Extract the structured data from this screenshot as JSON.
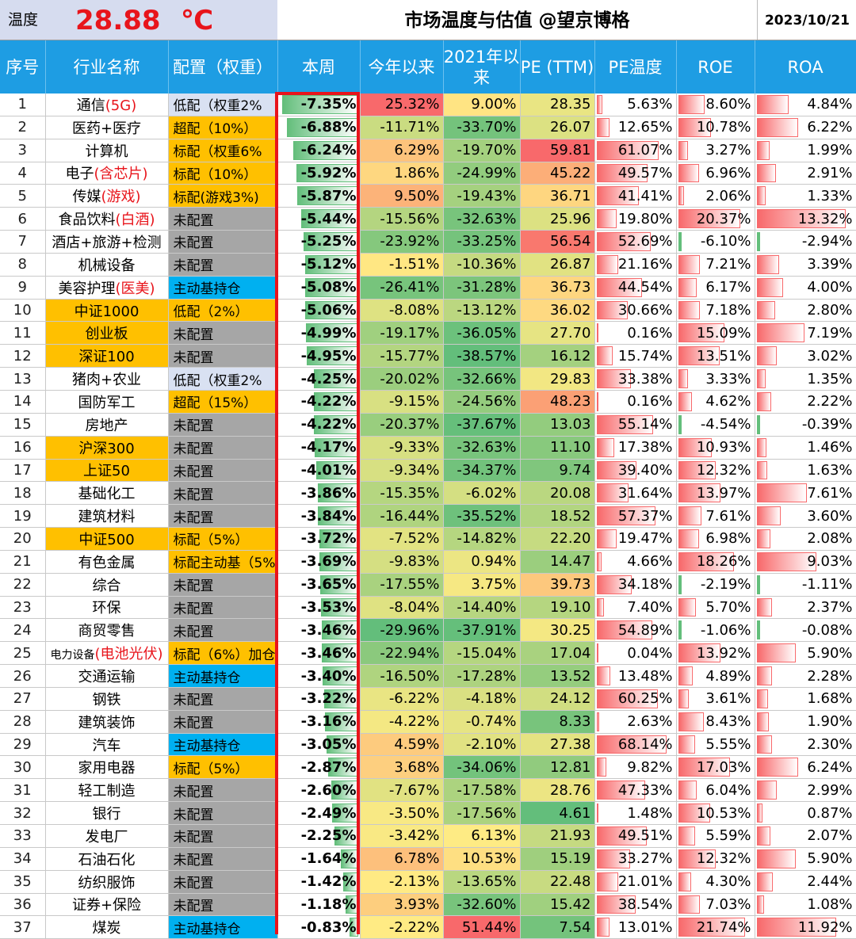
{
  "header": {
    "temp_label": "温度",
    "temp_value": "28.88",
    "temp_unit": "℃",
    "title": "市场温度与估值 @望京博格",
    "date": "2023/10/21"
  },
  "columns": [
    "序号",
    "行业名称",
    "配置（权重）",
    "本周",
    "今年以来",
    "2021年以来",
    "PE (TTM)",
    "PE温度",
    "ROE",
    "ROA"
  ],
  "colors": {
    "header_blue": "#1e9de3",
    "orange": "#ffc000",
    "gray": "#a6a6a6",
    "light_blue": "#d9e1f2",
    "cyan": "#00b0f0",
    "red_highlight": "#e8141b",
    "green": "#63be7b",
    "yellow": "#ffeb84",
    "red": "#f8696b"
  },
  "rows": [
    {
      "idx": "1",
      "name": "通信",
      "name_note": "(5G)",
      "alloc": "低配（权重2%",
      "alloc_style": "light",
      "week": "-7.35%",
      "ytd": "25.32%",
      "since2021": "9.00%",
      "pe": "28.35",
      "pe_temp": "5.63%",
      "roe": "8.60%",
      "roa": "4.84%"
    },
    {
      "idx": "2",
      "name": "医药+医疗",
      "name_note": "",
      "alloc": "超配（10%）",
      "alloc_style": "orange",
      "week": "-6.88%",
      "ytd": "-11.71%",
      "since2021": "-33.70%",
      "pe": "26.07",
      "pe_temp": "12.65%",
      "roe": "10.78%",
      "roa": "6.22%"
    },
    {
      "idx": "3",
      "name": "计算机",
      "name_note": "",
      "alloc": "标配（权重6%",
      "alloc_style": "orange",
      "week": "-6.24%",
      "ytd": "6.29%",
      "since2021": "-19.70%",
      "pe": "59.81",
      "pe_temp": "61.07%",
      "roe": "3.27%",
      "roa": "1.99%"
    },
    {
      "idx": "4",
      "name": "电子",
      "name_note": "(含芯片)",
      "alloc": "标配（10%）",
      "alloc_style": "orange",
      "week": "-5.92%",
      "ytd": "1.86%",
      "since2021": "-24.99%",
      "pe": "45.22",
      "pe_temp": "49.57%",
      "roe": "6.96%",
      "roa": "2.91%"
    },
    {
      "idx": "5",
      "name": "传媒",
      "name_note": "(游戏)",
      "alloc": "标配(游戏3%)",
      "alloc_style": "orange",
      "week": "-5.87%",
      "ytd": "9.50%",
      "since2021": "-19.43%",
      "pe": "36.71",
      "pe_temp": "41.41%",
      "roe": "2.06%",
      "roa": "1.33%"
    },
    {
      "idx": "6",
      "name": "食品饮料",
      "name_note": "(白酒)",
      "alloc": "未配置",
      "alloc_style": "gray",
      "week": "-5.44%",
      "ytd": "-15.56%",
      "since2021": "-32.63%",
      "pe": "25.96",
      "pe_temp": "19.80%",
      "roe": "20.37%",
      "roa": "13.32%"
    },
    {
      "idx": "7",
      "name": "酒店+旅游+检测",
      "name_note": "",
      "alloc": "未配置",
      "alloc_style": "gray",
      "week": "-5.25%",
      "ytd": "-23.92%",
      "since2021": "-33.25%",
      "pe": "56.54",
      "pe_temp": "52.69%",
      "roe": "-6.10%",
      "roa": "-2.94%"
    },
    {
      "idx": "8",
      "name": "机械设备",
      "name_note": "",
      "alloc": "未配置",
      "alloc_style": "gray",
      "week": "-5.12%",
      "ytd": "-1.51%",
      "since2021": "-10.36%",
      "pe": "26.87",
      "pe_temp": "21.16%",
      "roe": "7.21%",
      "roa": "3.39%"
    },
    {
      "idx": "9",
      "name": "美容护理",
      "name_note": "(医美)",
      "alloc": "主动基持仓",
      "alloc_style": "blue",
      "week": "-5.08%",
      "ytd": "-26.41%",
      "since2021": "-31.28%",
      "pe": "36.73",
      "pe_temp": "44.54%",
      "roe": "6.17%",
      "roa": "4.00%"
    },
    {
      "idx": "10",
      "name": "中证1000",
      "name_note": "",
      "alloc": "低配（2%）",
      "alloc_style": "orange",
      "week": "-5.06%",
      "ytd": "-8.08%",
      "since2021": "-13.12%",
      "pe": "36.02",
      "pe_temp": "30.66%",
      "roe": "7.18%",
      "roa": "2.80%"
    },
    {
      "idx": "11",
      "name": "创业板",
      "name_note": "",
      "alloc": "未配置",
      "alloc_style": "gray",
      "week": "-4.99%",
      "ytd": "-19.17%",
      "since2021": "-36.05%",
      "pe": "27.70",
      "pe_temp": "0.16%",
      "roe": "15.09%",
      "roa": "7.19%"
    },
    {
      "idx": "12",
      "name": "深证100",
      "name_note": "",
      "alloc": "未配置",
      "alloc_style": "gray",
      "week": "-4.95%",
      "ytd": "-15.77%",
      "since2021": "-38.57%",
      "pe": "16.12",
      "pe_temp": "15.74%",
      "roe": "13.51%",
      "roa": "3.02%"
    },
    {
      "idx": "13",
      "name": "猪肉+农业",
      "name_note": "",
      "alloc": "低配（权重2%",
      "alloc_style": "light",
      "week": "-4.25%",
      "ytd": "-20.02%",
      "since2021": "-32.66%",
      "pe": "29.83",
      "pe_temp": "33.38%",
      "roe": "3.33%",
      "roa": "1.35%"
    },
    {
      "idx": "14",
      "name": "国防军工",
      "name_note": "",
      "alloc": "超配（15%）",
      "alloc_style": "orange",
      "week": "-4.22%",
      "ytd": "-9.15%",
      "since2021": "-24.56%",
      "pe": "48.23",
      "pe_temp": "0.16%",
      "roe": "4.62%",
      "roa": "2.22%"
    },
    {
      "idx": "15",
      "name": "房地产",
      "name_note": "",
      "alloc": "未配置",
      "alloc_style": "gray",
      "week": "-4.22%",
      "ytd": "-20.37%",
      "since2021": "-37.67%",
      "pe": "13.03",
      "pe_temp": "55.14%",
      "roe": "-4.54%",
      "roa": "-0.39%"
    },
    {
      "idx": "16",
      "name": "沪深300",
      "name_note": "",
      "alloc": "未配置",
      "alloc_style": "gray",
      "week": "-4.17%",
      "ytd": "-9.33%",
      "since2021": "-32.63%",
      "pe": "11.10",
      "pe_temp": "17.38%",
      "roe": "10.93%",
      "roa": "1.46%"
    },
    {
      "idx": "17",
      "name": "上证50",
      "name_note": "",
      "alloc": "未配置",
      "alloc_style": "gray",
      "week": "-4.01%",
      "ytd": "-9.34%",
      "since2021": "-34.37%",
      "pe": "9.74",
      "pe_temp": "39.40%",
      "roe": "12.32%",
      "roa": "1.63%"
    },
    {
      "idx": "18",
      "name": "基础化工",
      "name_note": "",
      "alloc": "未配置",
      "alloc_style": "gray",
      "week": "-3.86%",
      "ytd": "-15.35%",
      "since2021": "-6.02%",
      "pe": "20.08",
      "pe_temp": "31.64%",
      "roe": "13.97%",
      "roa": "7.61%"
    },
    {
      "idx": "19",
      "name": "建筑材料",
      "name_note": "",
      "alloc": "未配置",
      "alloc_style": "gray",
      "week": "-3.84%",
      "ytd": "-16.44%",
      "since2021": "-35.52%",
      "pe": "18.52",
      "pe_temp": "57.37%",
      "roe": "7.61%",
      "roa": "3.60%"
    },
    {
      "idx": "20",
      "name": "中证500",
      "name_note": "",
      "alloc": "标配（5%）",
      "alloc_style": "orange",
      "week": "-3.72%",
      "ytd": "-7.52%",
      "since2021": "-14.82%",
      "pe": "22.20",
      "pe_temp": "19.47%",
      "roe": "6.98%",
      "roa": "2.08%"
    },
    {
      "idx": "21",
      "name": "有色金属",
      "name_note": "",
      "alloc": "标配主动基（5%",
      "alloc_style": "orange",
      "week": "-3.69%",
      "ytd": "-9.83%",
      "since2021": "0.94%",
      "pe": "14.47",
      "pe_temp": "4.66%",
      "roe": "18.26%",
      "roa": "9.03%"
    },
    {
      "idx": "22",
      "name": "综合",
      "name_note": "",
      "alloc": "未配置",
      "alloc_style": "gray",
      "week": "-3.65%",
      "ytd": "-17.55%",
      "since2021": "3.75%",
      "pe": "39.73",
      "pe_temp": "34.18%",
      "roe": "-2.19%",
      "roa": "-1.11%"
    },
    {
      "idx": "23",
      "name": "环保",
      "name_note": "",
      "alloc": "未配置",
      "alloc_style": "gray",
      "week": "-3.53%",
      "ytd": "-8.04%",
      "since2021": "-14.40%",
      "pe": "19.10",
      "pe_temp": "7.40%",
      "roe": "5.70%",
      "roa": "2.37%"
    },
    {
      "idx": "24",
      "name": "商贸零售",
      "name_note": "",
      "alloc": "未配置",
      "alloc_style": "gray",
      "week": "-3.46%",
      "ytd": "-29.96%",
      "since2021": "-37.91%",
      "pe": "30.25",
      "pe_temp": "54.89%",
      "roe": "-1.06%",
      "roa": "-0.08%"
    },
    {
      "idx": "25",
      "name": "电力设备",
      "name_note": "(电池光伏)",
      "alloc": "标配（6%）加仓",
      "alloc_style": "orange",
      "week": "-3.46%",
      "ytd": "-22.94%",
      "since2021": "-15.04%",
      "pe": "17.04",
      "pe_temp": "0.04%",
      "roe": "13.92%",
      "roa": "5.90%"
    },
    {
      "idx": "26",
      "name": "交通运输",
      "name_note": "",
      "alloc": "主动基持仓",
      "alloc_style": "blue",
      "week": "-3.40%",
      "ytd": "-16.50%",
      "since2021": "-17.28%",
      "pe": "13.52",
      "pe_temp": "13.48%",
      "roe": "4.89%",
      "roa": "2.28%"
    },
    {
      "idx": "27",
      "name": "钢铁",
      "name_note": "",
      "alloc": "未配置",
      "alloc_style": "gray",
      "week": "-3.22%",
      "ytd": "-6.22%",
      "since2021": "-4.18%",
      "pe": "24.12",
      "pe_temp": "60.25%",
      "roe": "3.61%",
      "roa": "1.68%"
    },
    {
      "idx": "28",
      "name": "建筑装饰",
      "name_note": "",
      "alloc": "未配置",
      "alloc_style": "gray",
      "week": "-3.16%",
      "ytd": "-4.22%",
      "since2021": "-0.74%",
      "pe": "8.33",
      "pe_temp": "2.63%",
      "roe": "8.43%",
      "roa": "1.90%"
    },
    {
      "idx": "29",
      "name": "汽车",
      "name_note": "",
      "alloc": "主动基持仓",
      "alloc_style": "blue",
      "week": "-3.05%",
      "ytd": "4.59%",
      "since2021": "-2.10%",
      "pe": "27.38",
      "pe_temp": "68.14%",
      "roe": "5.55%",
      "roa": "2.30%"
    },
    {
      "idx": "30",
      "name": "家用电器",
      "name_note": "",
      "alloc": "标配（5%）",
      "alloc_style": "orange",
      "week": "-2.87%",
      "ytd": "3.68%",
      "since2021": "-34.06%",
      "pe": "12.81",
      "pe_temp": "9.82%",
      "roe": "17.03%",
      "roa": "6.24%"
    },
    {
      "idx": "31",
      "name": "轻工制造",
      "name_note": "",
      "alloc": "未配置",
      "alloc_style": "gray",
      "week": "-2.60%",
      "ytd": "-7.67%",
      "since2021": "-17.58%",
      "pe": "28.76",
      "pe_temp": "47.33%",
      "roe": "6.04%",
      "roa": "2.99%"
    },
    {
      "idx": "32",
      "name": "银行",
      "name_note": "",
      "alloc": "未配置",
      "alloc_style": "gray",
      "week": "-2.49%",
      "ytd": "-3.50%",
      "since2021": "-17.56%",
      "pe": "4.61",
      "pe_temp": "1.48%",
      "roe": "10.53%",
      "roa": "0.87%"
    },
    {
      "idx": "33",
      "name": "发电厂",
      "name_note": "",
      "alloc": "未配置",
      "alloc_style": "gray",
      "week": "-2.25%",
      "ytd": "-3.42%",
      "since2021": "6.13%",
      "pe": "21.93",
      "pe_temp": "49.51%",
      "roe": "5.59%",
      "roa": "2.07%"
    },
    {
      "idx": "34",
      "name": "石油石化",
      "name_note": "",
      "alloc": "未配置",
      "alloc_style": "gray",
      "week": "-1.64%",
      "ytd": "6.78%",
      "since2021": "10.53%",
      "pe": "15.19",
      "pe_temp": "33.27%",
      "roe": "12.32%",
      "roa": "5.90%"
    },
    {
      "idx": "35",
      "name": "纺织服饰",
      "name_note": "",
      "alloc": "未配置",
      "alloc_style": "gray",
      "week": "-1.42%",
      "ytd": "-2.13%",
      "since2021": "-13.65%",
      "pe": "22.48",
      "pe_temp": "21.01%",
      "roe": "4.30%",
      "roa": "2.44%"
    },
    {
      "idx": "36",
      "name": "证券+保险",
      "name_note": "",
      "alloc": "未配置",
      "alloc_style": "gray",
      "week": "-1.18%",
      "ytd": "3.93%",
      "since2021": "-32.60%",
      "pe": "15.42",
      "pe_temp": "38.54%",
      "roe": "7.03%",
      "roa": "1.08%"
    },
    {
      "idx": "37",
      "name": "煤炭",
      "name_note": "",
      "alloc": "主动基持仓",
      "alloc_style": "blue",
      "week": "-0.83%",
      "ytd": "-2.22%",
      "since2021": "51.44%",
      "pe": "7.54",
      "pe_temp": "13.01%",
      "roe": "21.74%",
      "roa": "11.92%"
    }
  ]
}
